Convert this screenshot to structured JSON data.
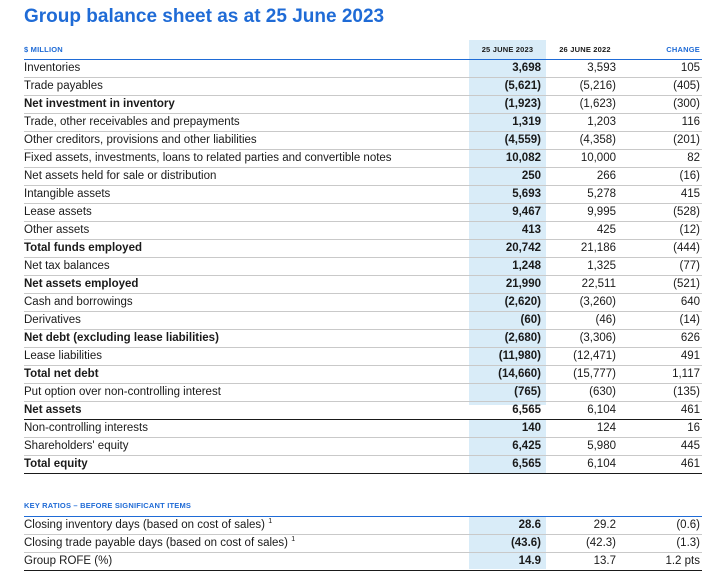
{
  "title": "Group balance sheet as at 25 June 2023",
  "headers": {
    "label": "$ MILLION",
    "col_a": "25 JUNE 2023",
    "col_b": "26 JUNE 2022",
    "col_c": "CHANGE"
  },
  "rows1": [
    {
      "label": "Inventories",
      "a": "3,698",
      "b": "3,593",
      "c": "105"
    },
    {
      "label": "Trade payables",
      "a": "(5,621)",
      "b": "(5,216)",
      "c": "(405)"
    },
    {
      "label": "Net investment in inventory",
      "a": "(1,923)",
      "b": "(1,623)",
      "c": "(300)"
    },
    {
      "label": "Trade, other receivables and prepayments",
      "a": "1,319",
      "b": "1,203",
      "c": "116"
    },
    {
      "label": "Other creditors, provisions and other liabilities",
      "a": "(4,559)",
      "b": "(4,358)",
      "c": "(201)"
    },
    {
      "label": "Fixed assets, investments, loans to related parties and convertible notes",
      "a": "10,082",
      "b": "10,000",
      "c": "82"
    },
    {
      "label": "Net assets held for sale or distribution",
      "a": "250",
      "b": "266",
      "c": "(16)"
    },
    {
      "label": "Intangible assets",
      "a": "5,693",
      "b": "5,278",
      "c": "415"
    },
    {
      "label": "Lease assets",
      "a": "9,467",
      "b": "9,995",
      "c": "(528)"
    },
    {
      "label": "Other assets",
      "a": "413",
      "b": "425",
      "c": "(12)"
    },
    {
      "label": "Total funds employed",
      "a": "20,742",
      "b": "21,186",
      "c": "(444)"
    },
    {
      "label": "Net tax balances",
      "a": "1,248",
      "b": "1,325",
      "c": "(77)"
    },
    {
      "label": "Net assets employed",
      "a": "21,990",
      "b": "22,511",
      "c": "(521)"
    },
    {
      "label": "Cash and borrowings",
      "a": "(2,620)",
      "b": "(3,260)",
      "c": "640"
    },
    {
      "label": "Derivatives",
      "a": "(60)",
      "b": "(46)",
      "c": "(14)"
    },
    {
      "label": "Net debt (excluding lease liabilities)",
      "a": "(2,680)",
      "b": "(3,306)",
      "c": "626"
    },
    {
      "label": "Lease liabilities",
      "a": "(11,980)",
      "b": "(12,471)",
      "c": "491"
    },
    {
      "label": "Total net debt",
      "a": "(14,660)",
      "b": "(15,777)",
      "c": "1,117"
    },
    {
      "label": "Put option over non-controlling interest",
      "a": "(765)",
      "b": "(630)",
      "c": "(135)"
    },
    {
      "label": "Net assets",
      "a": "6,565",
      "b": "6,104",
      "c": "461"
    }
  ],
  "rows2": [
    {
      "label": "Non-controlling interests",
      "a": "140",
      "b": "124",
      "c": "16"
    },
    {
      "label": "Shareholders' equity",
      "a": "6,425",
      "b": "5,980",
      "c": "445"
    },
    {
      "label": "Total equity",
      "a": "6,565",
      "b": "6,104",
      "c": "461"
    }
  ],
  "ratios_header": "KEY RATIOS – BEFORE SIGNIFICANT ITEMS",
  "footnote_marker": "1",
  "rows3": [
    {
      "label": "Closing inventory days (based on cost of sales)",
      "a": "28.6",
      "b": "29.2",
      "c": "(0.6)"
    },
    {
      "label": "Closing trade payable days (based on cost of sales)",
      "a": "(43.6)",
      "b": "(42.3)",
      "c": "(1.3)"
    },
    {
      "label": "Group ROFE (%)",
      "a": "14.9",
      "b": "13.7",
      "c": "1.2 pts"
    }
  ]
}
